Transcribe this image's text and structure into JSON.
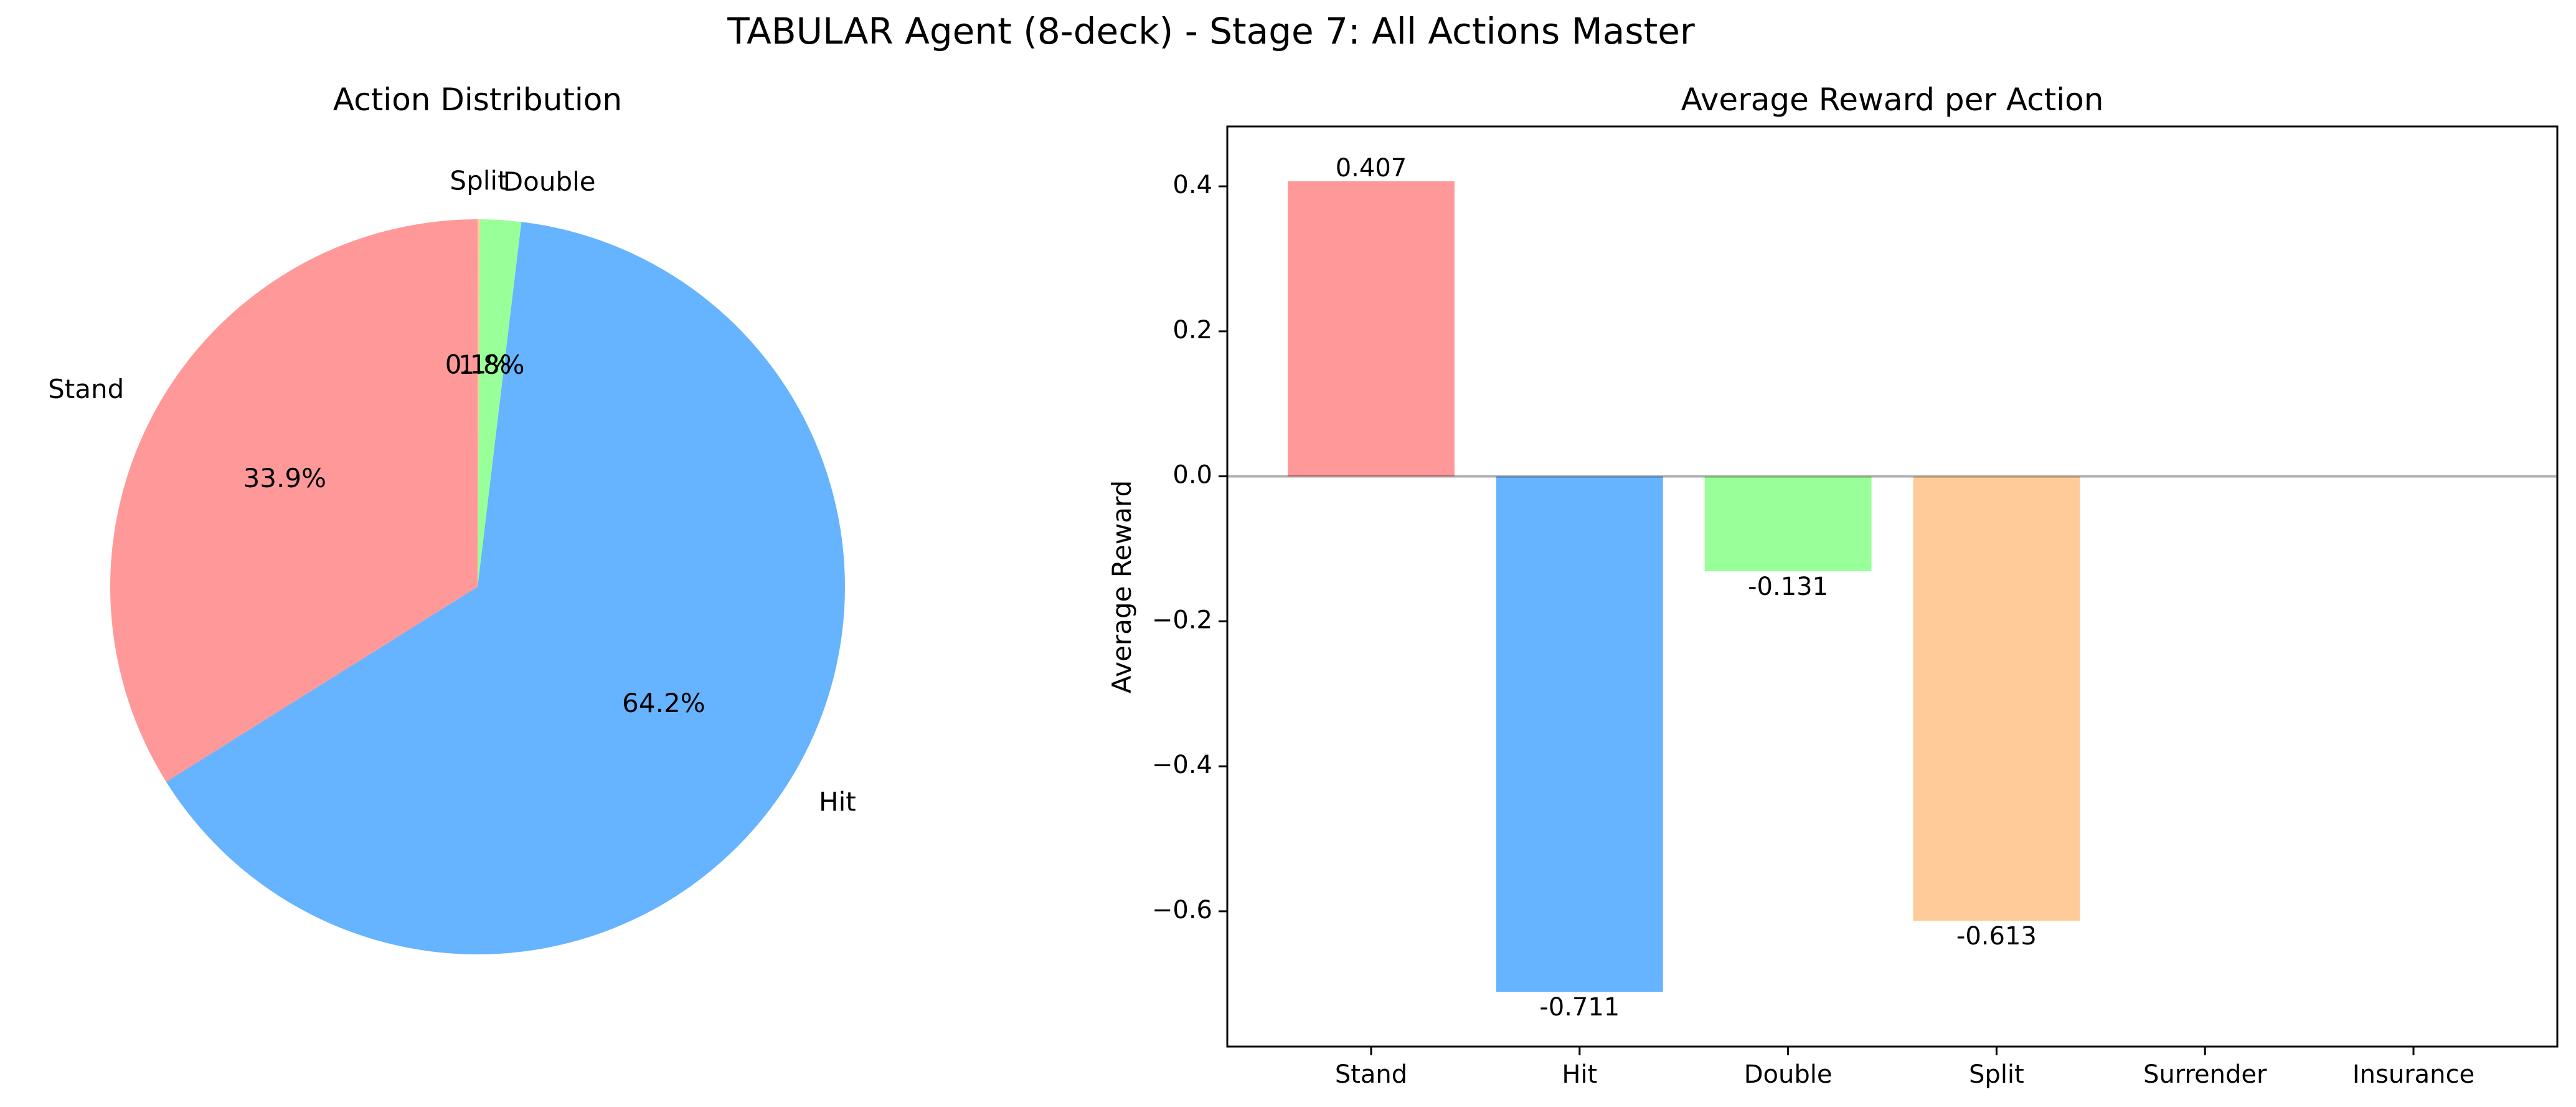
{
  "figure": {
    "suptitle": "TABULAR Agent (8-deck) - Stage 7: All Actions Master"
  },
  "chart_data": [
    {
      "type": "pie",
      "title": "Action Distribution",
      "labels": [
        "Stand",
        "Hit",
        "Double",
        "Split"
      ],
      "values": [
        33.9,
        64.2,
        1.8,
        0.1
      ],
      "autopct_labels": [
        "33.9%",
        "64.2%",
        "1.8%",
        "0.1%"
      ],
      "colors": [
        "#ff9999",
        "#66b3ff",
        "#99ff99",
        "#ffcc99"
      ],
      "start_angle_deg": 90,
      "direction": "counterclockwise"
    },
    {
      "type": "bar",
      "title": "Average Reward per Action",
      "xlabel": "",
      "ylabel": "Average Reward",
      "categories": [
        "Stand",
        "Hit",
        "Double",
        "Split",
        "Surrender",
        "Insurance"
      ],
      "values": [
        0.407,
        -0.711,
        -0.131,
        -0.613,
        null,
        null
      ],
      "value_labels": [
        "0.407",
        "-0.711",
        "-0.131",
        "-0.613",
        "",
        ""
      ],
      "colors": [
        "#ff9999",
        "#66b3ff",
        "#99ff99",
        "#ffcc99",
        "#ff99cc",
        "#c2c2f0"
      ],
      "ylim": [
        -0.7866,
        0.4826
      ],
      "yticks": [
        0.4,
        0.2,
        0.0,
        -0.2,
        -0.4,
        -0.6
      ],
      "ytick_labels": [
        "0.4",
        "0.2",
        "0.0",
        "−0.2",
        "−0.4",
        "−0.6"
      ],
      "zero_line": true,
      "grid": false
    }
  ]
}
